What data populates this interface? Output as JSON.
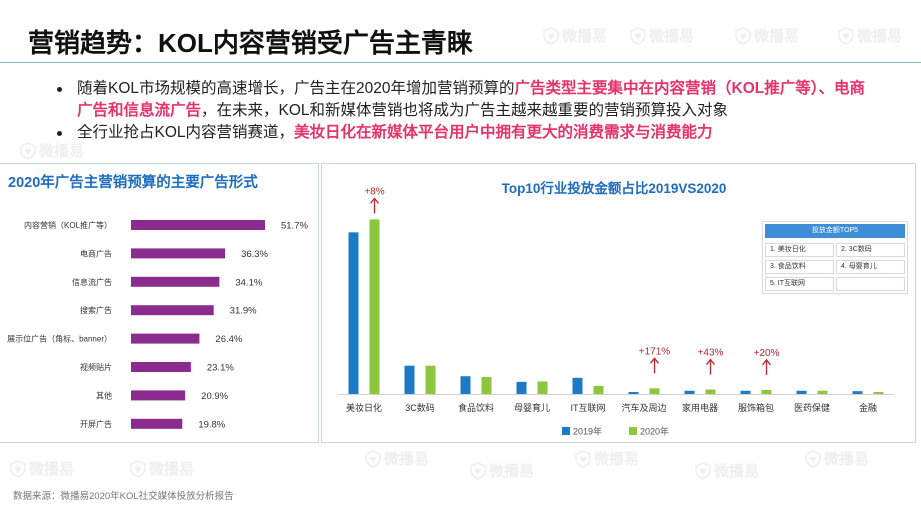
{
  "title": "营销趋势：KOL内容营销受广告主青睐",
  "bullets": [
    {
      "segments": [
        {
          "text": "随着KOL市场规模的高速增长，广告主在2020年增加营销预算的"
        },
        {
          "text": "广告类型主要集中在内容营销（KOL推广等）、电商广告和信息流广告"
        },
        {
          "text": "，在未来，KOL和新媒体营销也将成为广告主越来越重要的营销预算投入对象"
        }
      ]
    },
    {
      "segments": [
        {
          "text": "全行业抢占KOL内容营销赛道，"
        },
        {
          "text": "美妆日化在新媒体平台用户中拥有更大的消费需求与消费能力"
        }
      ]
    }
  ],
  "colors": {
    "highlight": "#e6336a",
    "heading_blue": "#1d6cc0",
    "annotation": "#b8282e"
  },
  "watermark": {
    "text": "微播易"
  },
  "footer": {
    "source": "数据来源：微播易2020年KOL社交媒体投放分析报告"
  },
  "chart_data": [
    {
      "type": "bar",
      "orientation": "horizontal",
      "title": "2020年广告主营销预算的主要广告形式",
      "categories": [
        "内容营销（KOL推广等）",
        "电商广告",
        "信息流广告",
        "搜索广告",
        "展示位广告（角标、banner）",
        "视频贴片",
        "其他",
        "开屏广告"
      ],
      "values": [
        51.7,
        36.3,
        34.1,
        31.9,
        26.4,
        23.1,
        20.9,
        19.8
      ],
      "value_labels": [
        "51.7%",
        "36.3%",
        "34.1%",
        "31.9%",
        "26.4%",
        "23.1%",
        "20.9%",
        "19.8%"
      ],
      "xlim": [
        0,
        60
      ],
      "grid": false,
      "color": "#8b2b8e"
    },
    {
      "type": "bar",
      "title": "Top10行业投放金额占比2019VS2020",
      "categories": [
        "美妆日化",
        "3C数码",
        "食品饮料",
        "母婴育儿",
        "IT互联网",
        "汽车及周边",
        "家用电器",
        "服饰箱包",
        "医药保健",
        "金融"
      ],
      "series": [
        {
          "name": "2019年",
          "color": "#1b7bc6",
          "values": [
            40.0,
            7.0,
            4.4,
            3.0,
            4.0,
            0.5,
            0.8,
            0.8,
            0.8,
            0.7
          ]
        },
        {
          "name": "2020年",
          "color": "#8cc63e",
          "values": [
            43.2,
            7.0,
            4.2,
            3.1,
            2.0,
            1.4,
            1.1,
            1.0,
            0.8,
            0.5
          ]
        }
      ],
      "ylim": [
        0,
        48
      ],
      "grid": false,
      "legend": "bottom",
      "annotations": [
        {
          "category": "美妆日化",
          "series": "2020年",
          "text": "+8%"
        },
        {
          "category": "汽车及周边",
          "series": "2020年",
          "text": "+171%"
        },
        {
          "category": "家用电器",
          "series": "2020年",
          "text": "+43%"
        },
        {
          "category": "服饰箱包",
          "series": "2020年",
          "text": "+20%"
        }
      ],
      "inset_table": {
        "title": "投放金额TOP5",
        "items": [
          "1. 美妆日化",
          "2. 3C数码",
          "3. 食品饮料",
          "4. 母婴育儿",
          "5. IT互联网"
        ]
      }
    }
  ]
}
